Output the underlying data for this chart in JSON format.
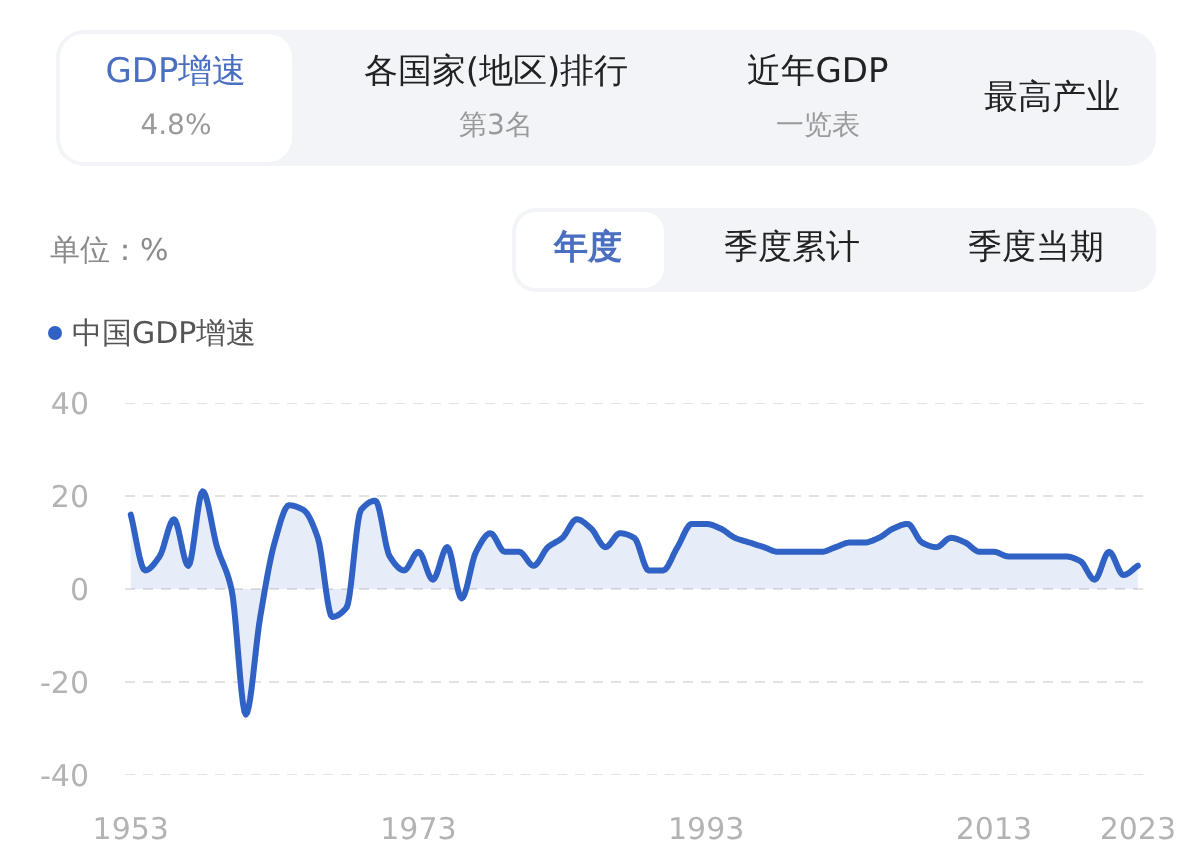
{
  "chart_data": {
    "type": "area",
    "ylabel": "单位：%",
    "annotations": [
      "GDP增速",
      "4.8%",
      "各国家(地区)排行",
      "第3名",
      "近年GDP",
      "一览表",
      "最高产业",
      "年度",
      "季度累计",
      "季度当期"
    ],
    "x": [
      1953,
      1954,
      1955,
      1956,
      1957,
      1958,
      1959,
      1960,
      1961,
      1962,
      1963,
      1964,
      1965,
      1966,
      1967,
      1968,
      1969,
      1970,
      1971,
      1972,
      1973,
      1974,
      1975,
      1976,
      1977,
      1978,
      1979,
      1980,
      1981,
      1982,
      1983,
      1984,
      1985,
      1986,
      1987,
      1988,
      1989,
      1990,
      1991,
      1992,
      1993,
      1994,
      1995,
      1996,
      1997,
      1998,
      1999,
      2000,
      2001,
      2002,
      2003,
      2004,
      2005,
      2006,
      2007,
      2008,
      2009,
      2010,
      2011,
      2012,
      2013,
      2014,
      2015,
      2016,
      2017,
      2018,
      2019,
      2020,
      2021,
      2022,
      2023
    ],
    "series": [
      {
        "name": "中国GDP增速",
        "color": "#2f62c4",
        "values": [
          16,
          4,
          7,
          15,
          5,
          21,
          9,
          0,
          -27,
          -6,
          10,
          18,
          17,
          11,
          -6,
          -4,
          17,
          19,
          7,
          4,
          8,
          2,
          9,
          -2,
          8,
          12,
          8,
          8,
          5,
          9,
          11,
          15,
          13,
          9,
          12,
          11,
          4,
          4,
          9,
          14,
          14,
          13,
          11,
          10,
          9,
          8,
          8,
          8,
          8,
          9,
          10,
          10,
          11,
          13,
          14,
          10,
          9,
          11,
          10,
          8,
          8,
          7,
          7,
          7,
          7,
          7,
          6,
          2,
          8,
          3,
          5
        ]
      }
    ],
    "xlim": [
      1952.6,
      2023.5
    ],
    "ylim": [
      -40,
      40
    ],
    "xticks": [
      1953,
      1973,
      1993,
      2013,
      2023
    ],
    "yticks": [
      -40,
      -20,
      0,
      20,
      40
    ],
    "grid": "y",
    "legend": "top left"
  }
}
